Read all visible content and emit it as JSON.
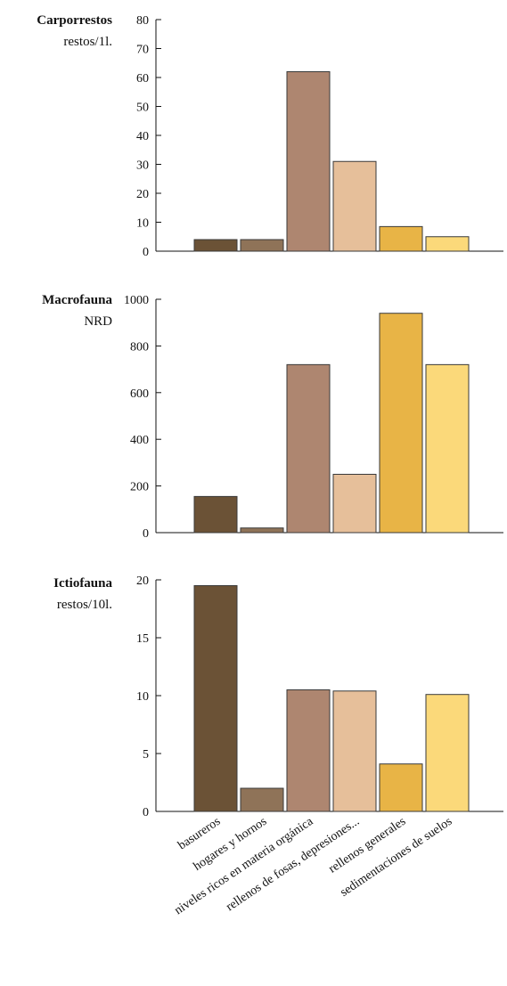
{
  "chart_data": {
    "type": "bar",
    "categories": [
      "basureros",
      "hogares y hornos",
      "niveles ricos en materia orgánica",
      "rellenos de fosas, depresiones...",
      "rellenos generales",
      "sedimentaciones de suelos"
    ],
    "bar_colors": [
      "#6b5236",
      "#8f7358",
      "#ae8670",
      "#e6bf9a",
      "#e8b446",
      "#fbd97a"
    ],
    "panels": [
      {
        "title": "Carporrestos",
        "unit": "restos/1l.",
        "values": [
          4,
          4,
          62,
          31,
          8.5,
          5
        ],
        "ylim": [
          0,
          80
        ],
        "yticks": [
          "0",
          "10",
          "20",
          "30",
          "40",
          "50",
          "60",
          "70",
          "80"
        ]
      },
      {
        "title": "Macrofauna",
        "unit": "NRD",
        "values": [
          155,
          20,
          720,
          250,
          940,
          720
        ],
        "ylim": [
          0,
          1000
        ],
        "yticks": [
          "0",
          "200",
          "400",
          "600",
          "800",
          "1000"
        ]
      },
      {
        "title": "Ictiofauna",
        "unit": "restos/10l.",
        "values": [
          19.5,
          2,
          10.5,
          10.4,
          4.1,
          10.1
        ],
        "ylim": [
          0,
          20
        ],
        "yticks": [
          "0",
          "5",
          "10",
          "15",
          "20"
        ]
      }
    ]
  }
}
